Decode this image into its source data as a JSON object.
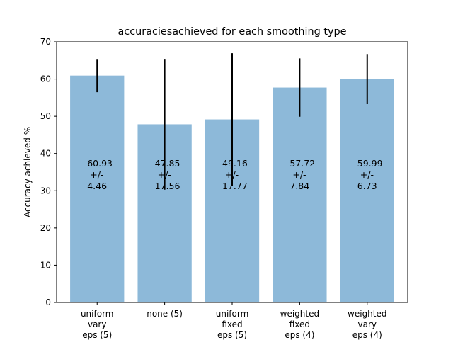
{
  "chart_data": {
    "type": "bar",
    "title": "accuraciesachieved for each smoothing type",
    "xlabel": "",
    "ylabel": "Accuracy achieved %",
    "ylim": [
      0,
      70
    ],
    "yticks": [
      0,
      10,
      20,
      30,
      40,
      50,
      60,
      70
    ],
    "grid": false,
    "bar_color": "#8db9d9",
    "error_color": "#000000",
    "categories": [
      [
        "uniform",
        "vary",
        "eps (5)"
      ],
      [
        "none (5)"
      ],
      [
        "uniform",
        "fixed",
        "eps (5)"
      ],
      [
        "weighted",
        "fixed",
        "eps (4)"
      ],
      [
        "weighted",
        "vary",
        "eps (4)"
      ]
    ],
    "values": [
      60.93,
      47.85,
      49.16,
      57.72,
      59.99
    ],
    "errors": [
      4.46,
      17.56,
      17.77,
      7.84,
      6.73
    ],
    "data_labels": [
      [
        "60.93",
        "+/-",
        "4.46"
      ],
      [
        "47.85",
        "+/-",
        "17.56"
      ],
      [
        "49.16",
        "+/-",
        "17.77"
      ],
      [
        "57.72",
        "+/-",
        "7.84"
      ],
      [
        "59.99",
        "+/-",
        "6.73"
      ]
    ]
  }
}
